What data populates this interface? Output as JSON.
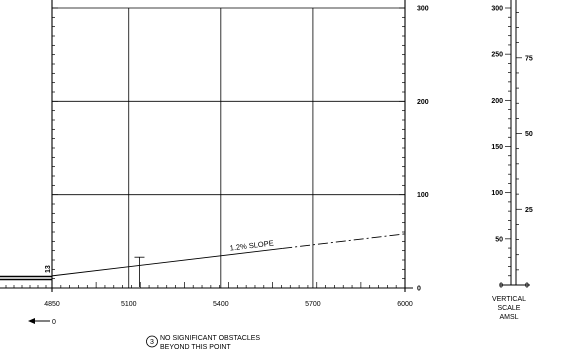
{
  "chart_data": {
    "type": "diagram",
    "x_ticks": [
      4850,
      5100,
      5400,
      5700,
      6000
    ],
    "y_ticks_right": [
      0,
      100,
      200,
      300
    ],
    "ylim": [
      0,
      300
    ],
    "xlim": [
      4850,
      6000
    ],
    "slope_line": {
      "label": "1.2% SLOPE",
      "start": {
        "x": 4850,
        "y": 13
      },
      "end": {
        "x": 6000,
        "y": 58
      }
    },
    "start_elevation_label": "13",
    "left_arrow_label": "0",
    "obstacle": {
      "number": "3",
      "x": 5135,
      "height": 33,
      "note_lines": [
        "NO SIGNIFICANT OBSTACLES",
        "BEYOND THIS POINT"
      ]
    },
    "vertical_scale": {
      "caption_lines": [
        "VERTICAL",
        "SCALE",
        "AMSL"
      ],
      "left_ticks": [
        0,
        50,
        100,
        150,
        200,
        250,
        300
      ],
      "right_ticks": [
        0,
        25,
        50,
        75
      ]
    }
  }
}
